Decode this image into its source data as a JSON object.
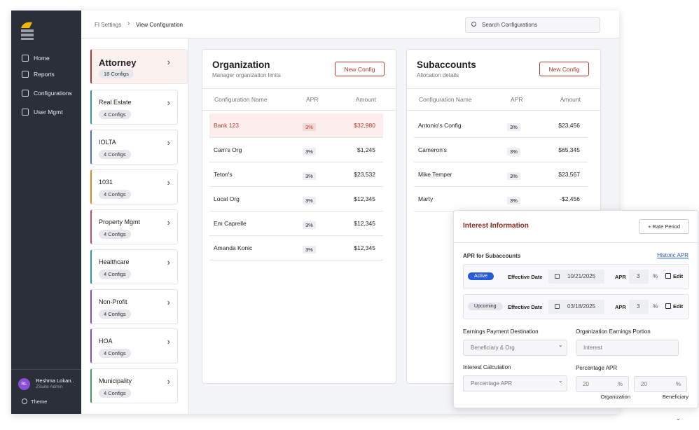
{
  "sidebar": {
    "nav": [
      "Home",
      "Reports",
      "Configurations",
      "User Mgmt"
    ],
    "user": {
      "initials": "RL",
      "name": "Reshma Lokan..",
      "role": "ZSuite Admin"
    },
    "theme": "Theme"
  },
  "breadcrumb": [
    "FI Settings",
    "View Configuration"
  ],
  "search": "Search Configurations",
  "categories": [
    {
      "name": "Attorney",
      "count": "18 Configs"
    },
    {
      "name": "Real Estate",
      "count": "4 Configs"
    },
    {
      "name": "IOLTA",
      "count": "4 Configs"
    },
    {
      "name": "1031",
      "count": "4 Configs"
    },
    {
      "name": "Property Mgmt",
      "count": "4 Configs"
    },
    {
      "name": "Healthcare",
      "count": "4 Configs"
    },
    {
      "name": "Non-Profit",
      "count": "4 Configs"
    },
    {
      "name": "HOA",
      "count": "4 Configs"
    },
    {
      "name": "Municipality",
      "count": "4 Configs"
    }
  ],
  "organization": {
    "title": "Organization",
    "subtitle": "Manager organization limits",
    "button": "New Config",
    "columns": [
      "Configuration Name",
      "APR",
      "Amount"
    ],
    "rows": [
      [
        "Bank 123",
        "3%",
        "$32,980"
      ],
      [
        "Cam's Org",
        "3%",
        "$1,245"
      ],
      [
        "Teton's",
        "3%",
        "$23,532"
      ],
      [
        "Local Org",
        "3%",
        "$12,345"
      ],
      [
        "Em Caprelle",
        "3%",
        "$12,345"
      ],
      [
        "Amanda Konic",
        "3%",
        "$12,345"
      ]
    ]
  },
  "subaccounts": {
    "title": "Subaccounts",
    "subtitle": "Allocation details",
    "button": "New Config",
    "columns": [
      "Configuration Name",
      "APR",
      "Amount"
    ],
    "rows": [
      [
        "Antonio's Config",
        "3%",
        "$23,456"
      ],
      [
        "Cameron's",
        "3%",
        "$65,345"
      ],
      [
        "Mike Temper",
        "3%",
        "$23,567"
      ],
      [
        "Marty",
        "3%",
        "-$2,456"
      ]
    ]
  },
  "interest": {
    "title": "Interest Information",
    "button": "+ Rate Period",
    "apr_label": "APR for Subaccounts",
    "history": "Historic APR",
    "periods": [
      {
        "status": "Active",
        "date_label": "Effective Date",
        "date": "10/21/2025",
        "apr_label": "APR",
        "apr": "3",
        "unit": "%",
        "edit": "Edit"
      },
      {
        "status": "Upcoming",
        "date_label": "Effective Date",
        "date": "03/18/2025",
        "apr_label": "APR",
        "apr": "3",
        "unit": "%",
        "edit": "Edit"
      }
    ],
    "destination_label": "Earnings Payment Destination",
    "destination": "Beneficiary & Org",
    "portion_label": "Organization Earnings Portion",
    "portion": "Interest",
    "calc_label": "Interest Calculation",
    "calc": "Percentage APR",
    "pct_label": "Percentage APR",
    "org_pct": "20",
    "org_unit": "%",
    "org_label": "Organization",
    "ben_pct": "20",
    "ben_unit": "%",
    "ben_label": "Beneficiary"
  }
}
